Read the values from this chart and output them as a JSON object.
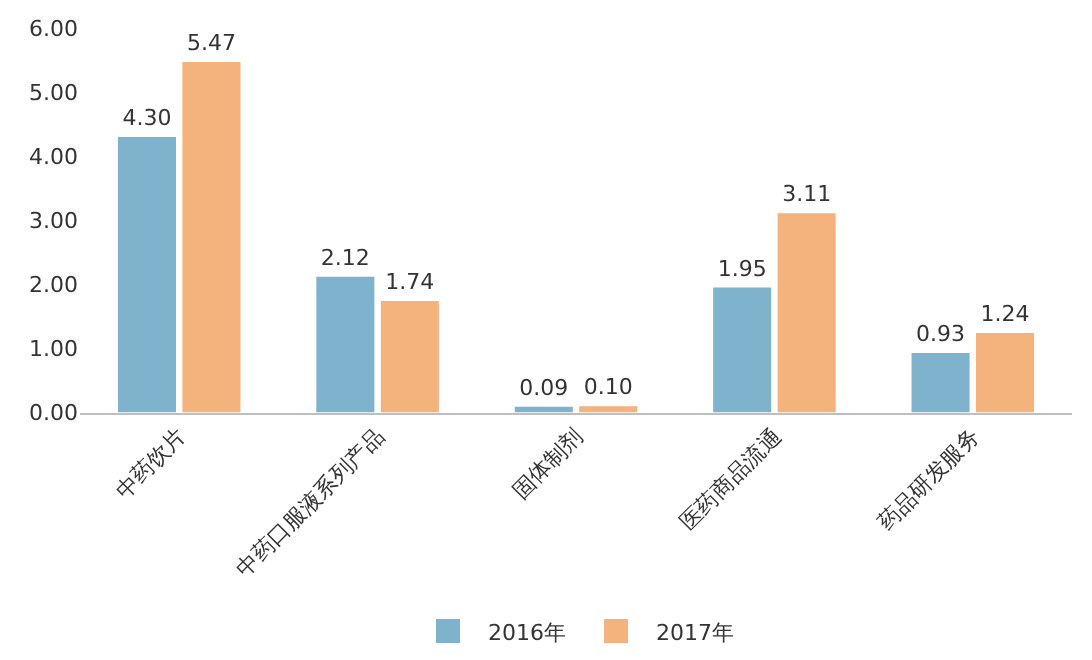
{
  "chart_data": {
    "type": "bar",
    "categories": [
      "中药饮片",
      "中药口服液系列产品",
      "固体制剂",
      "医药商品流通",
      "药品研发服务"
    ],
    "series": [
      {
        "name": "2016年",
        "color": "#7fb2cc",
        "values": [
          4.3,
          2.12,
          0.09,
          1.95,
          0.93
        ],
        "value_labels": [
          "4.30",
          "2.12",
          "0.09",
          "1.95",
          "0.93"
        ]
      },
      {
        "name": "2017年",
        "color": "#f4b27c",
        "values": [
          5.47,
          1.74,
          0.1,
          3.11,
          1.24
        ],
        "value_labels": [
          "5.47",
          "1.74",
          "0.10",
          "3.11",
          "1.24"
        ]
      }
    ],
    "ylim": [
      0,
      6
    ],
    "yticks": [
      {
        "value": 0,
        "label": "0.00"
      },
      {
        "value": 1,
        "label": "1.00"
      },
      {
        "value": 2,
        "label": "2.00"
      },
      {
        "value": 3,
        "label": "3.00"
      },
      {
        "value": 4,
        "label": "4.00"
      },
      {
        "value": 5,
        "label": "5.00"
      },
      {
        "value": 6,
        "label": "6.00"
      }
    ],
    "grid": false,
    "legend": "bottom"
  }
}
